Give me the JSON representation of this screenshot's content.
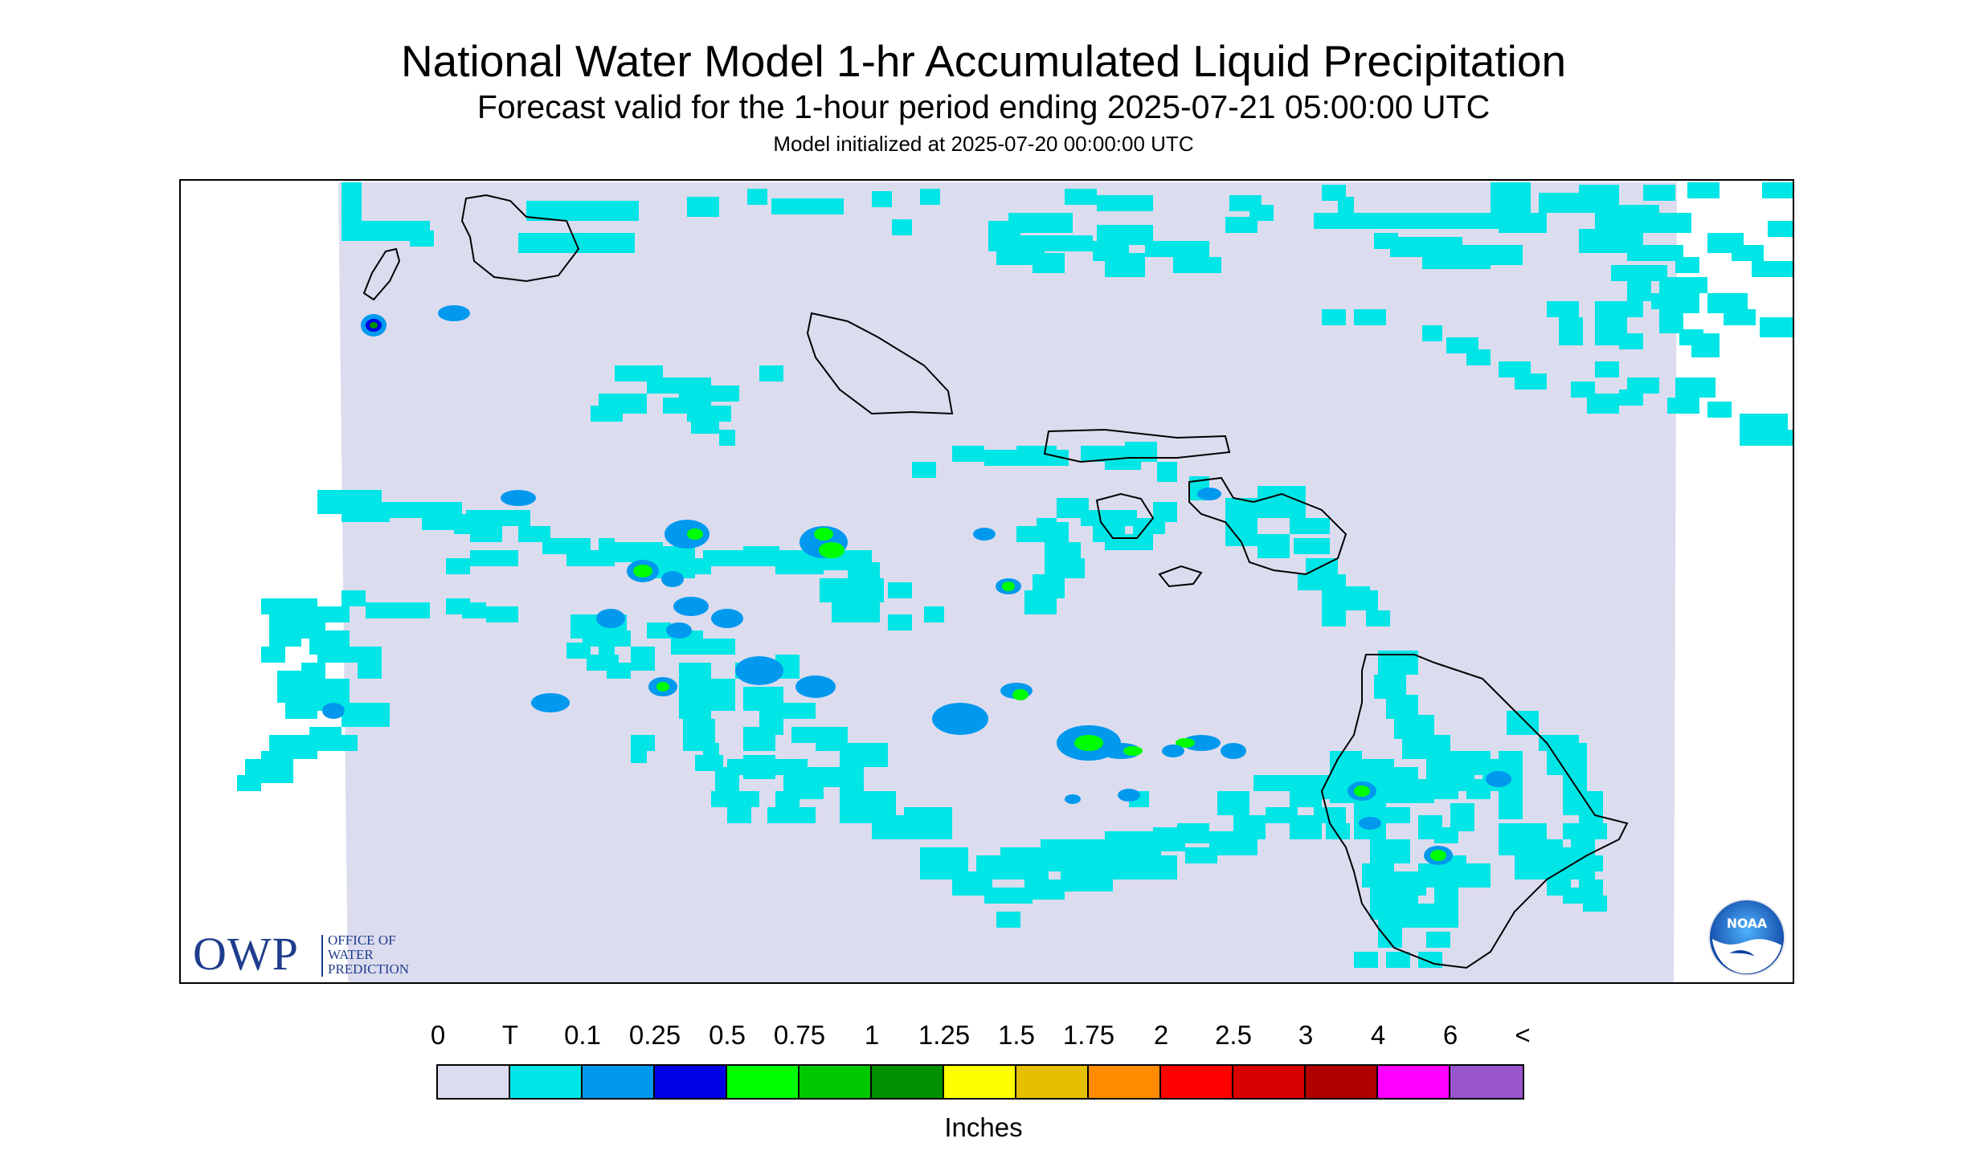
{
  "header": {
    "title": "National Water Model 1-hr Accumulated Liquid Precipitation",
    "subtitle": "Forecast valid for the 1-hour period ending 2025-07-21 05:00:00 UTC",
    "init": "Model initialized at 2025-07-20 00:00:00 UTC"
  },
  "colors": {
    "background_no_precip": "#dcdcef",
    "trace": "#00e5e5",
    "outline": "#000000"
  },
  "logos": {
    "owp_big": "OWP",
    "owp_line1": "OFFICE OF",
    "owp_line2": "WATER",
    "owp_line3": "PREDICTION",
    "noaa": "NOAA"
  },
  "legend": {
    "units": "Inches",
    "ticks": [
      "0",
      "T",
      "0.1",
      "0.25",
      "0.5",
      "0.75",
      "1",
      "1.25",
      "1.5",
      "1.75",
      "2",
      "2.5",
      "3",
      "4",
      "6",
      "<"
    ],
    "colors": [
      "#dcdcef",
      "#00e5e5",
      "#0099ee",
      "#0000e5",
      "#00ff00",
      "#00c800",
      "#009000",
      "#ffff00",
      "#e5c000",
      "#ff8c00",
      "#ff0000",
      "#d80000",
      "#b00000",
      "#ff00ff",
      "#9955cc"
    ]
  }
}
